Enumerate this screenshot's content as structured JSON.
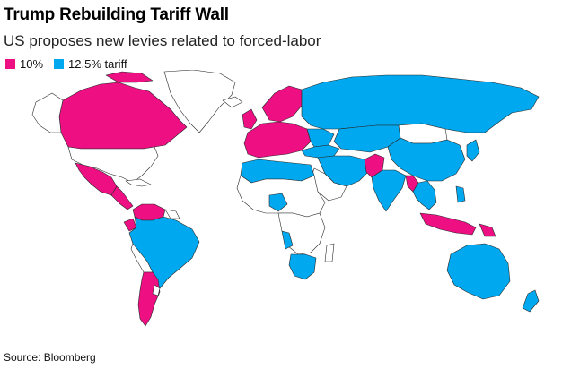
{
  "title": "Trump Rebuilding Tariff Wall",
  "subtitle": "US proposes new levies related to forced-labor",
  "legend": [
    {
      "label": "10%",
      "color": "#ee0f83"
    },
    {
      "label": "12.5% tariff",
      "color": "#00a8ef"
    }
  ],
  "source": "Source: Bloomberg",
  "colors": {
    "tariff_10": "#ee0f83",
    "tariff_12_5": "#00a8ef",
    "no_tariff": "#ffffff",
    "border": "#2a2a2a"
  }
}
